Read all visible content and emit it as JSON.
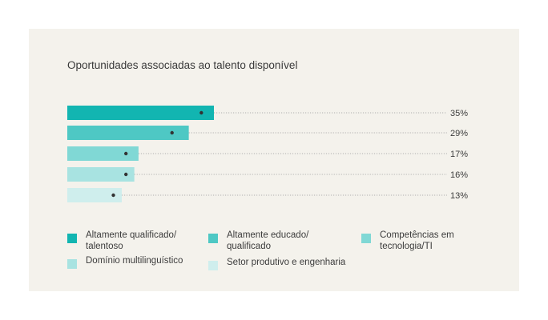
{
  "chart_data": {
    "type": "bar",
    "orientation": "horizontal",
    "title": "Oportunidades associadas ao talento disponível",
    "categories": [
      "Altamente qualificado/ talentoso",
      "Altamente educado/ qualificado",
      "Competências em tecnologia/TI",
      "Domínio multilinguístico",
      "Setor produtivo e engenharia"
    ],
    "values": [
      35,
      29,
      17,
      16,
      13
    ],
    "value_labels": [
      "35%",
      "29%",
      "17%",
      "16%",
      "13%"
    ],
    "markers": [
      32,
      25,
      14,
      14,
      11
    ],
    "colors": [
      "#12b5b1",
      "#4ec8c4",
      "#80d8d5",
      "#a8e3e1",
      "#cfeeed"
    ],
    "xlim": [
      0,
      35
    ],
    "legend_position": "bottom",
    "grid": false
  }
}
